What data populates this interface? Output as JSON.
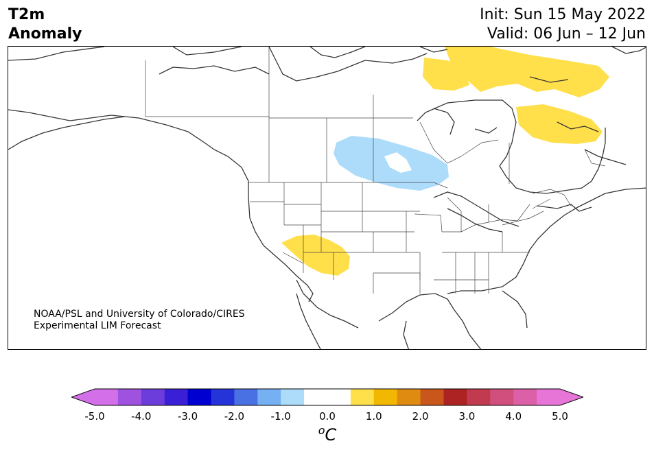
{
  "header": {
    "variable": "T2m",
    "field": "Anomaly",
    "init": "Init: Sun 15 May 2022",
    "valid": "Valid: 06 Jun – 12 Jun"
  },
  "credit": {
    "line1": "NOAA/PSL and University of Colorado/CIRES",
    "line2": "Experimental LIM Forecast"
  },
  "colorbar": {
    "unit_sup": "o",
    "unit": "C",
    "tick_labels": [
      "-5.0",
      "-4.0",
      "-3.0",
      "-2.0",
      "-1.0",
      "0.0",
      "1.0",
      "2.0",
      "3.0",
      "4.0",
      "5.0"
    ],
    "colors": [
      "#d36fe8",
      "#9f52e0",
      "#6d3ddc",
      "#3a1fd6",
      "#0000d0",
      "#2434d8",
      "#4a71e4",
      "#75b0f2",
      "#addcfb",
      "#ffffff",
      "#ffffff",
      "#ffdf4a",
      "#f2b700",
      "#df8a10",
      "#c9561a",
      "#ad2222",
      "#c23a50",
      "#d04f7c",
      "#db60a8",
      "#e775d8"
    ],
    "under_color": "#d36fe8",
    "over_color": "#e775d8"
  },
  "anomalies": [
    {
      "name": "hudson-bay-warm",
      "color": "#ffdf4a",
      "level": "0.5 to 1.0"
    },
    {
      "name": "arctic-islands-warm",
      "color": "#ffdf4a",
      "level": "0.5 to 1.0"
    },
    {
      "name": "southwest-us-warm",
      "color": "#ffdf4a",
      "level": "0.5 to 1.0"
    },
    {
      "name": "prairies-cool",
      "color": "#addcfb",
      "level": "-1.0 to -0.5"
    }
  ]
}
